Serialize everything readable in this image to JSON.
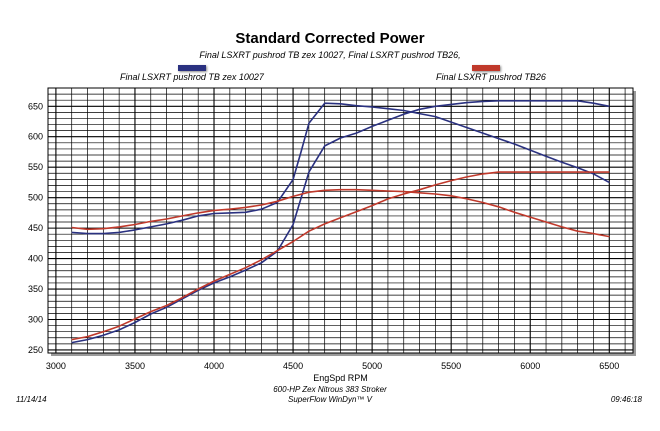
{
  "chart_data": {
    "type": "line",
    "title": "Standard Corrected Power",
    "subtitle": "Final LSXRT pushrod TB zex 10027, Final LSXRT pushrod TB26,",
    "xlabel": "EngSpd RPM",
    "ylabel": "",
    "xlim": [
      2950,
      6650
    ],
    "ylim": [
      245,
      680
    ],
    "x_ticks": [
      3000,
      3500,
      4000,
      4500,
      5000,
      5500,
      6000,
      6500
    ],
    "y_ticks": [
      250,
      300,
      350,
      400,
      450,
      500,
      550,
      600,
      650
    ],
    "grid": true,
    "colors": {
      "series1": "#2a3180",
      "series2": "#c0392b"
    },
    "series": [
      {
        "name": "Final LSXRT pushrod TB zex 10027",
        "color": "#2a3180",
        "lines": [
          {
            "x": [
              3100,
              3200,
              3300,
              3400,
              3500,
              3600,
              3700,
              3800,
              3900,
              4000,
              4100,
              4200,
              4300,
              4400,
              4500,
              4550,
              4600,
              4700,
              4800,
              4900,
              5000,
              5100,
              5200,
              5300,
              5400,
              5500,
              5600,
              5700,
              5800,
              5900,
              6000,
              6100,
              6200,
              6300,
              6400,
              6500
            ],
            "y": [
              443,
              441,
              441,
              443,
              447,
              452,
              457,
              463,
              470,
              474,
              475,
              476,
              481,
              492,
              530,
              575,
              622,
              655,
              654,
              651,
              649,
              646,
              643,
              638,
              633,
              624,
              615,
              606,
              597,
              588,
              578,
              568,
              558,
              549,
              539,
              525
            ]
          },
          {
            "x": [
              3100,
              3200,
              3300,
              3400,
              3500,
              3600,
              3700,
              3800,
              3900,
              4000,
              4100,
              4200,
              4300,
              4400,
              4500,
              4600,
              4700,
              4800,
              4900,
              5000,
              5100,
              5200,
              5300,
              5400,
              5500,
              5600,
              5700,
              5800,
              5900,
              6000,
              6100,
              6200,
              6300,
              6400,
              6500
            ],
            "y": [
              262,
              267,
              274,
              283,
              295,
              309,
              320,
              334,
              348,
              360,
              370,
              381,
              393,
              412,
              456,
              542,
              585,
              598,
              606,
              617,
              627,
              637,
              645,
              650,
              653,
              656,
              658,
              659,
              659,
              659,
              659,
              659,
              659,
              655,
              650
            ]
          }
        ]
      },
      {
        "name": "Final LSXRT pushrod TB26",
        "color": "#c0392b",
        "lines": [
          {
            "x": [
              3100,
              3200,
              3300,
              3400,
              3500,
              3600,
              3700,
              3800,
              3900,
              4000,
              4100,
              4200,
              4300,
              4400,
              4500,
              4600,
              4700,
              4800,
              4900,
              5000,
              5100,
              5200,
              5300,
              5400,
              5500,
              5600,
              5700,
              5800,
              5900,
              6000,
              6100,
              6200,
              6300,
              6400,
              6500
            ],
            "y": [
              451,
              448,
              449,
              452,
              456,
              461,
              465,
              470,
              475,
              479,
              481,
              484,
              488,
              494,
              502,
              509,
              512,
              513,
              513,
              512,
              511,
              510,
              508,
              506,
              503,
              498,
              492,
              485,
              476,
              468,
              460,
              452,
              445,
              441,
              436
            ]
          },
          {
            "x": [
              3100,
              3200,
              3300,
              3400,
              3500,
              3600,
              3700,
              3800,
              3900,
              4000,
              4100,
              4200,
              4300,
              4400,
              4500,
              4600,
              4700,
              4800,
              4900,
              5000,
              5100,
              5200,
              5300,
              5400,
              5500,
              5600,
              5700,
              5800,
              5900,
              6000,
              6100,
              6200,
              6300,
              6400,
              6500
            ],
            "y": [
              267,
              272,
              280,
              289,
              301,
              313,
              323,
              336,
              350,
              363,
              374,
              385,
              398,
              413,
              428,
              445,
              457,
              467,
              477,
              487,
              498,
              506,
              513,
              521,
              528,
              534,
              539,
              542,
              542,
              542,
              542,
              542,
              542,
              542,
              542
            ]
          }
        ]
      }
    ]
  },
  "legend": {
    "left_label": "Final LSXRT pushrod TB zex 10027",
    "right_label": "Final LSXRT pushrod TB26"
  },
  "footer": {
    "date": "11/14/14",
    "engine": "600-HP Zex Nitrous 383 Stroker",
    "software": "SuperFlow WinDyn™ V",
    "time": "09:46:18"
  }
}
